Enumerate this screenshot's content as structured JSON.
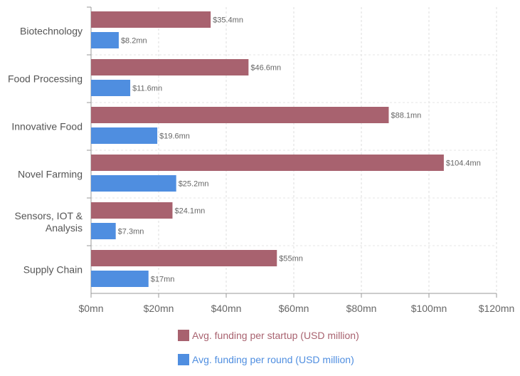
{
  "chart_data": {
    "type": "bar",
    "orientation": "horizontal",
    "categories": [
      [
        "Biotechnology"
      ],
      [
        "Food Processing"
      ],
      [
        "Innovative Food"
      ],
      [
        "Novel Farming"
      ],
      [
        "Sensors, IOT &",
        "Analysis"
      ],
      [
        "Supply Chain"
      ]
    ],
    "series": [
      {
        "name": "Avg. funding per startup (USD million)",
        "color": "#a8626f",
        "values": [
          35.4,
          46.6,
          88.1,
          104.4,
          24.1,
          55
        ],
        "labels": [
          "$35.4mn",
          "$46.6mn",
          "$88.1mn",
          "$104.4mn",
          "$24.1mn",
          "$55mn"
        ]
      },
      {
        "name": "Avg. funding per round (USD million)",
        "color": "#4f8ee0",
        "values": [
          8.2,
          11.6,
          19.6,
          25.2,
          7.3,
          17
        ],
        "labels": [
          "$8.2mn",
          "$11.6mn",
          "$19.6mn",
          "$25.2mn",
          "$7.3mn",
          "$17mn"
        ]
      }
    ],
    "xlim": [
      0,
      120
    ],
    "xticks": [
      0,
      20,
      40,
      60,
      80,
      100,
      120
    ],
    "xtick_labels": [
      "$0mn",
      "$20mn",
      "$40mn",
      "$60mn",
      "$80mn",
      "$100mn",
      "$120mn"
    ],
    "grid": true,
    "legend_position": "bottom"
  }
}
